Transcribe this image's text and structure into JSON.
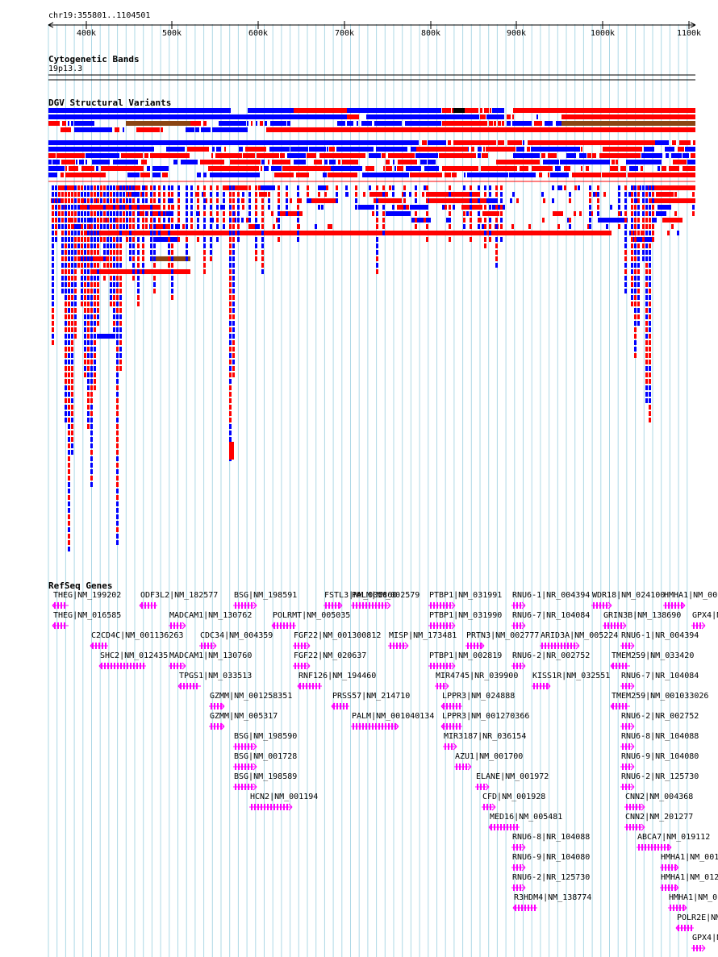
{
  "colors": {
    "grid": "#add8e6",
    "red": "#ff0000",
    "blue": "#0000ff",
    "brown": "#8b4513",
    "black": "#000000",
    "magenta": "#ff00ff"
  },
  "region": {
    "label": "chr19:355801..1104501",
    "start": 355801,
    "end": 1104501
  },
  "ruler": {
    "ticks": [
      "400k",
      "500k",
      "600k",
      "700k",
      "800k",
      "900k",
      "1000k",
      "1100k"
    ]
  },
  "cytoband": {
    "title": "Cytogenetic Bands",
    "band": "19p13.3"
  },
  "dgv": {
    "title": "DGV Structural Variants"
  },
  "refseq": {
    "title": "RefSeq Genes",
    "genes": [
      {
        "label": "THEG|NM_199202",
        "strand": "-"
      },
      {
        "label": "THEG|NM_016585",
        "strand": "-"
      },
      {
        "label": "ODF3L2|NM_182577",
        "strand": "-"
      },
      {
        "label": "C2CD4C|NM_001136263",
        "strand": "-"
      },
      {
        "label": "SHC2|NM_012435",
        "strand": "-"
      },
      {
        "label": "MADCAM1|NM_130762",
        "strand": "+"
      },
      {
        "label": "MADCAM1|NM_130760",
        "strand": "+"
      },
      {
        "label": "TPGS1|NM_033513",
        "strand": "-"
      },
      {
        "label": "CDC34|NM_004359",
        "strand": "+"
      },
      {
        "label": "GZMM|NM_001258351",
        "strand": "+"
      },
      {
        "label": "GZMM|NM_005317",
        "strand": "+"
      },
      {
        "label": "BSG|NM_198591",
        "strand": "+"
      },
      {
        "label": "BSG|NM_198590",
        "strand": "+"
      },
      {
        "label": "BSG|NM_001728",
        "strand": "+"
      },
      {
        "label": "BSG|NM_198589",
        "strand": "+"
      },
      {
        "label": "HCN2|NM_001194",
        "strand": "+"
      },
      {
        "label": "POLRMT|NM_005035",
        "strand": "-"
      },
      {
        "label": "FSTL3|NM_005860",
        "strand": "+"
      },
      {
        "label": "FGF22|NM_001300812",
        "strand": "+"
      },
      {
        "label": "FGF22|NM_020637",
        "strand": "+"
      },
      {
        "label": "RNF126|NM_194460",
        "strand": "-"
      },
      {
        "label": "PRSS57|NM_214710",
        "strand": "-"
      },
      {
        "label": "PALM|NM_002579",
        "strand": "+"
      },
      {
        "label": "PALM|NM_001040134",
        "strand": "+"
      },
      {
        "label": "MISP|NM_173481",
        "strand": "+"
      },
      {
        "label": "PTBP1|NM_031991",
        "strand": "+"
      },
      {
        "label": "PTBP1|NM_031990",
        "strand": "+"
      },
      {
        "label": "PTBP1|NM_002819",
        "strand": "+"
      },
      {
        "label": "MIR4745|NR_039900",
        "strand": "+"
      },
      {
        "label": "LPPR3|NM_024888",
        "strand": "-"
      },
      {
        "label": "LPPR3|NM_001270366",
        "strand": "-"
      },
      {
        "label": "MIR3187|NR_036154",
        "strand": "+"
      },
      {
        "label": "AZU1|NM_001700",
        "strand": "+"
      },
      {
        "label": "PRTN3|NM_002777",
        "strand": "+"
      },
      {
        "label": "ELANE|NM_001972",
        "strand": "+"
      },
      {
        "label": "CFD|NM_001928",
        "strand": "+"
      },
      {
        "label": "MED16|NM_005481",
        "strand": "-"
      },
      {
        "label": "RNU6-1|NR_004394",
        "strand": "+"
      },
      {
        "label": "RNU6-7|NR_104084",
        "strand": "+"
      },
      {
        "label": "RNU6-2|NR_002752",
        "strand": "+"
      },
      {
        "label": "RNU6-8|NR_104088",
        "strand": "+"
      },
      {
        "label": "RNU6-9|NR_104080",
        "strand": "+"
      },
      {
        "label": "RNU6-2|NR_125730",
        "strand": "+"
      },
      {
        "label": "R3HDM4|NM_138774",
        "strand": "-"
      },
      {
        "label": "ARID3A|NM_005224",
        "strand": "+"
      },
      {
        "label": "KISS1R|NM_032551",
        "strand": "+"
      },
      {
        "label": "WDR18|NM_024100",
        "strand": "+"
      },
      {
        "label": "GRIN3B|NM_138690",
        "strand": "+"
      },
      {
        "label": "RNU6-1|NR_004394",
        "strand": "+"
      },
      {
        "label": "TMEM259|NM_033420",
        "strand": "-"
      },
      {
        "label": "RNU6-7|NR_104084",
        "strand": "+"
      },
      {
        "label": "TMEM259|NM_001033026",
        "strand": "-"
      },
      {
        "label": "RNU6-2|NR_002752",
        "strand": "+"
      },
      {
        "label": "RNU6-8|NR_104088",
        "strand": "+"
      },
      {
        "label": "RNU6-9|NR_104080",
        "strand": "+"
      },
      {
        "label": "RNU6-2|NR_125730",
        "strand": "+"
      },
      {
        "label": "CNN2|NM_004368",
        "strand": "+"
      },
      {
        "label": "CNN2|NM_201277",
        "strand": "+"
      },
      {
        "label": "ABCA7|NM_019112",
        "strand": "+"
      },
      {
        "label": "HMHA1|NM_00",
        "strand": "+"
      },
      {
        "label": "HMHA1|NM_001",
        "strand": "+"
      },
      {
        "label": "HMHA1|NM_012",
        "strand": "+"
      },
      {
        "label": "HMHA1|NM_0",
        "strand": "+"
      },
      {
        "label": "POLR2E|NM",
        "strand": "-"
      },
      {
        "label": "GPX4|N",
        "strand": "+"
      },
      {
        "label": "GPX4|NM",
        "strand": "+"
      }
    ]
  }
}
